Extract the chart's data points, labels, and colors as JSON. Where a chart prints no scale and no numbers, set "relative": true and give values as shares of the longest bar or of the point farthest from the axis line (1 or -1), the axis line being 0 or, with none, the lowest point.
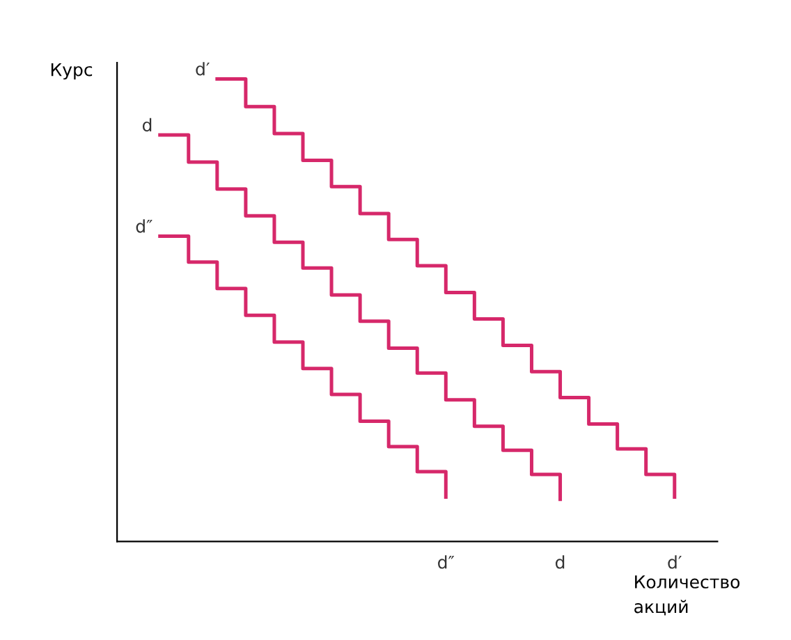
{
  "chart_data": {
    "type": "step",
    "relative": true,
    "xlabel": "Количество\nакций",
    "ylabel": "Курс",
    "legend": false,
    "grid": false,
    "marker": "none",
    "line_style": "solid",
    "categories": [
      null,
      null,
      null,
      null,
      null,
      null,
      null,
      null,
      null,
      null,
      null,
      null,
      null,
      null,
      null,
      null,
      null,
      null,
      null,
      null,
      null
    ],
    "series": [
      {
        "name": "d′",
        "color": "#d6286a",
        "values": [
          null,
          null,
          null,
          1.0,
          0.94,
          0.882,
          0.824,
          0.767,
          0.709,
          0.653,
          0.596,
          0.538,
          0.481,
          0.424,
          0.367,
          0.311,
          0.254,
          0.2,
          0.145,
          0.096,
          null
        ]
      },
      {
        "name": "d",
        "color": "#d6286a",
        "values": [
          null,
          0.879,
          0.82,
          0.762,
          0.704,
          0.647,
          0.591,
          0.533,
          0.476,
          0.418,
          0.364,
          0.306,
          0.249,
          0.197,
          0.145,
          0.091,
          null,
          null,
          null,
          null,
          null
        ]
      },
      {
        "name": "d″",
        "color": "#d6286a",
        "values": [
          null,
          0.66,
          0.604,
          0.547,
          0.489,
          0.431,
          0.374,
          0.318,
          0.26,
          0.205,
          0.151,
          0.096,
          null,
          null,
          null,
          null,
          null,
          null,
          null,
          null,
          null
        ]
      }
    ]
  }
}
